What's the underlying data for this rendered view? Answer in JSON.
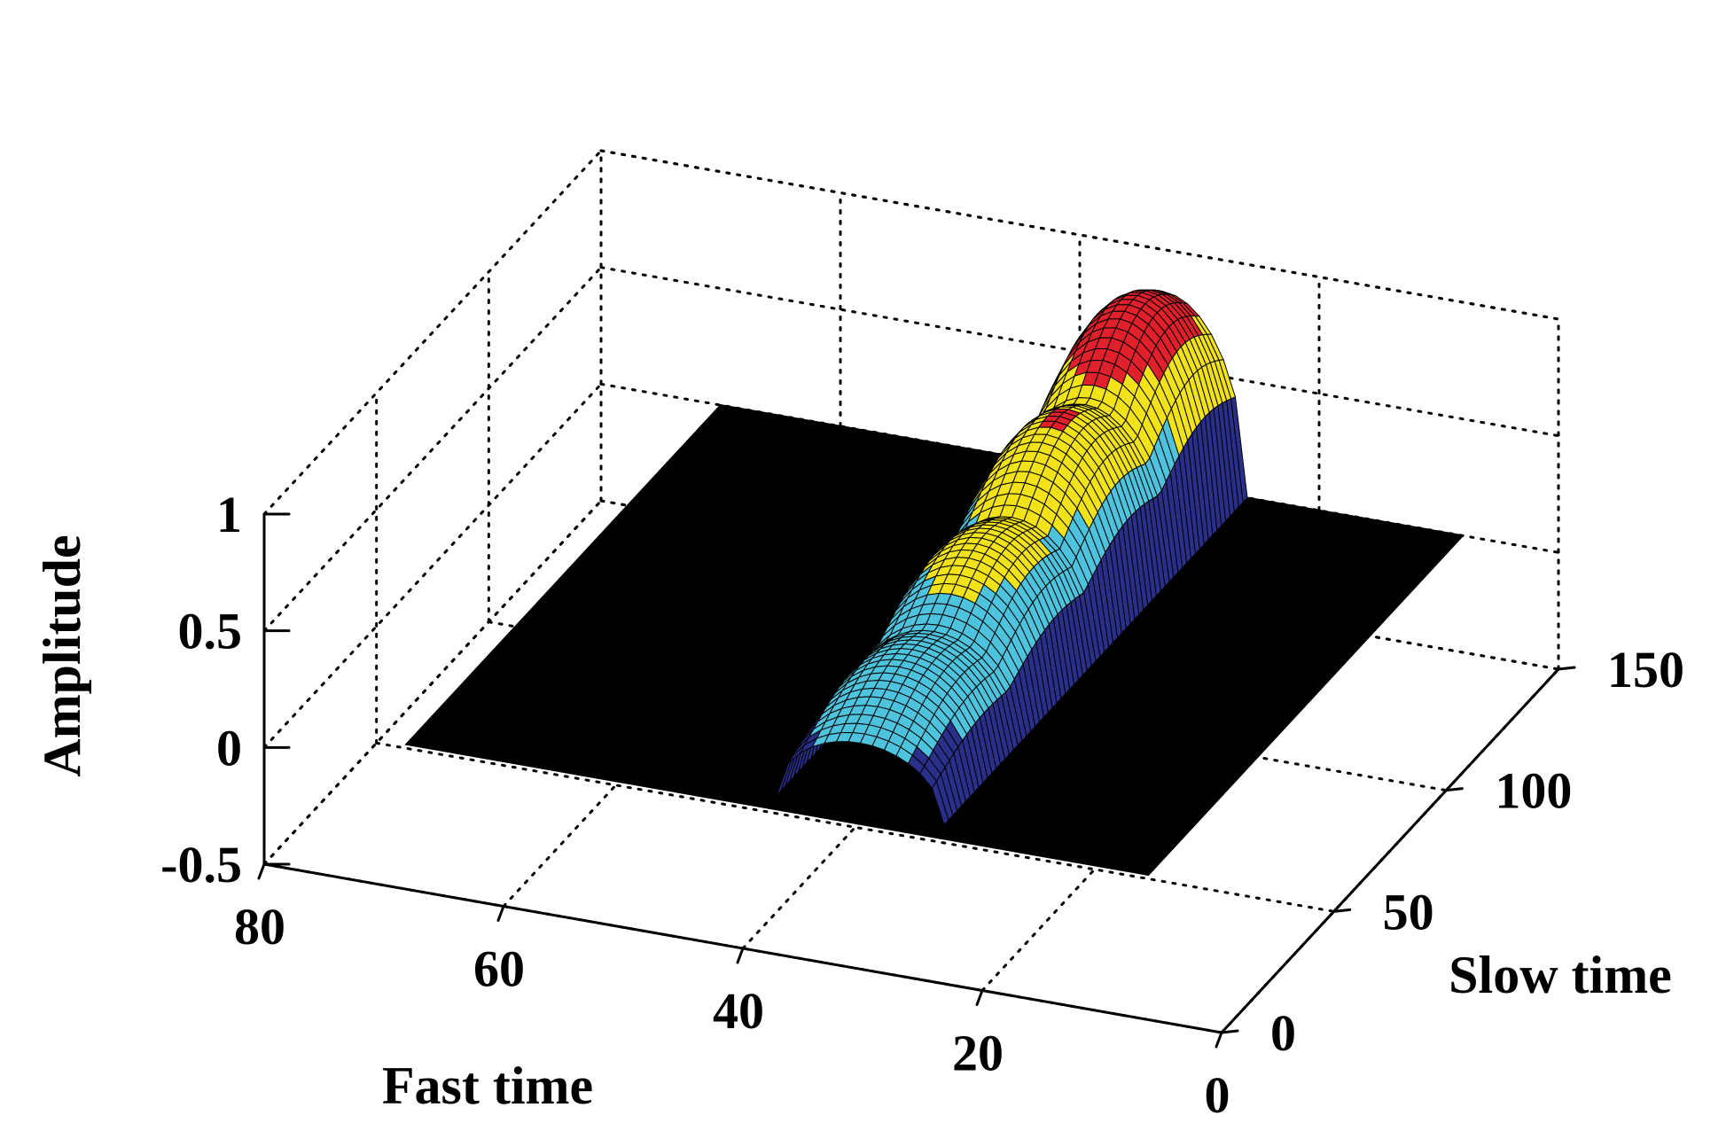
{
  "chart_data": {
    "type": "surface",
    "title": "",
    "xlabel": "Fast time",
    "ylabel": "Slow time",
    "zlabel": "Amplitude",
    "xlim": [
      0,
      80
    ],
    "ylim": [
      0,
      150
    ],
    "zlim": [
      -0.5,
      1
    ],
    "x_ticks": [
      "0",
      "20",
      "40",
      "60",
      "80"
    ],
    "y_ticks": [
      "0",
      "50",
      "100",
      "150"
    ],
    "z_ticks": [
      "-0.5",
      "0",
      "0.5",
      "1"
    ],
    "grid": "on",
    "surface": {
      "base_color": "#000000",
      "fast_time_extent": [
        8,
        70
      ],
      "slow_time_extent": [
        10,
        150
      ],
      "ridge_center_fast_time": 33,
      "ridge_halfwidth_fast_time": 7,
      "ridge_slow_time_range": [
        15,
        150
      ],
      "ridge_peak_amplitude": [
        0.35,
        1.0
      ],
      "bursts": 4
    },
    "colormap": [
      "#2a2f8a",
      "#4ec3dd",
      "#f2e21a",
      "#e0202a"
    ],
    "colors": {
      "axes": "#000000",
      "grid": "#000000",
      "surface": "#000000"
    }
  }
}
